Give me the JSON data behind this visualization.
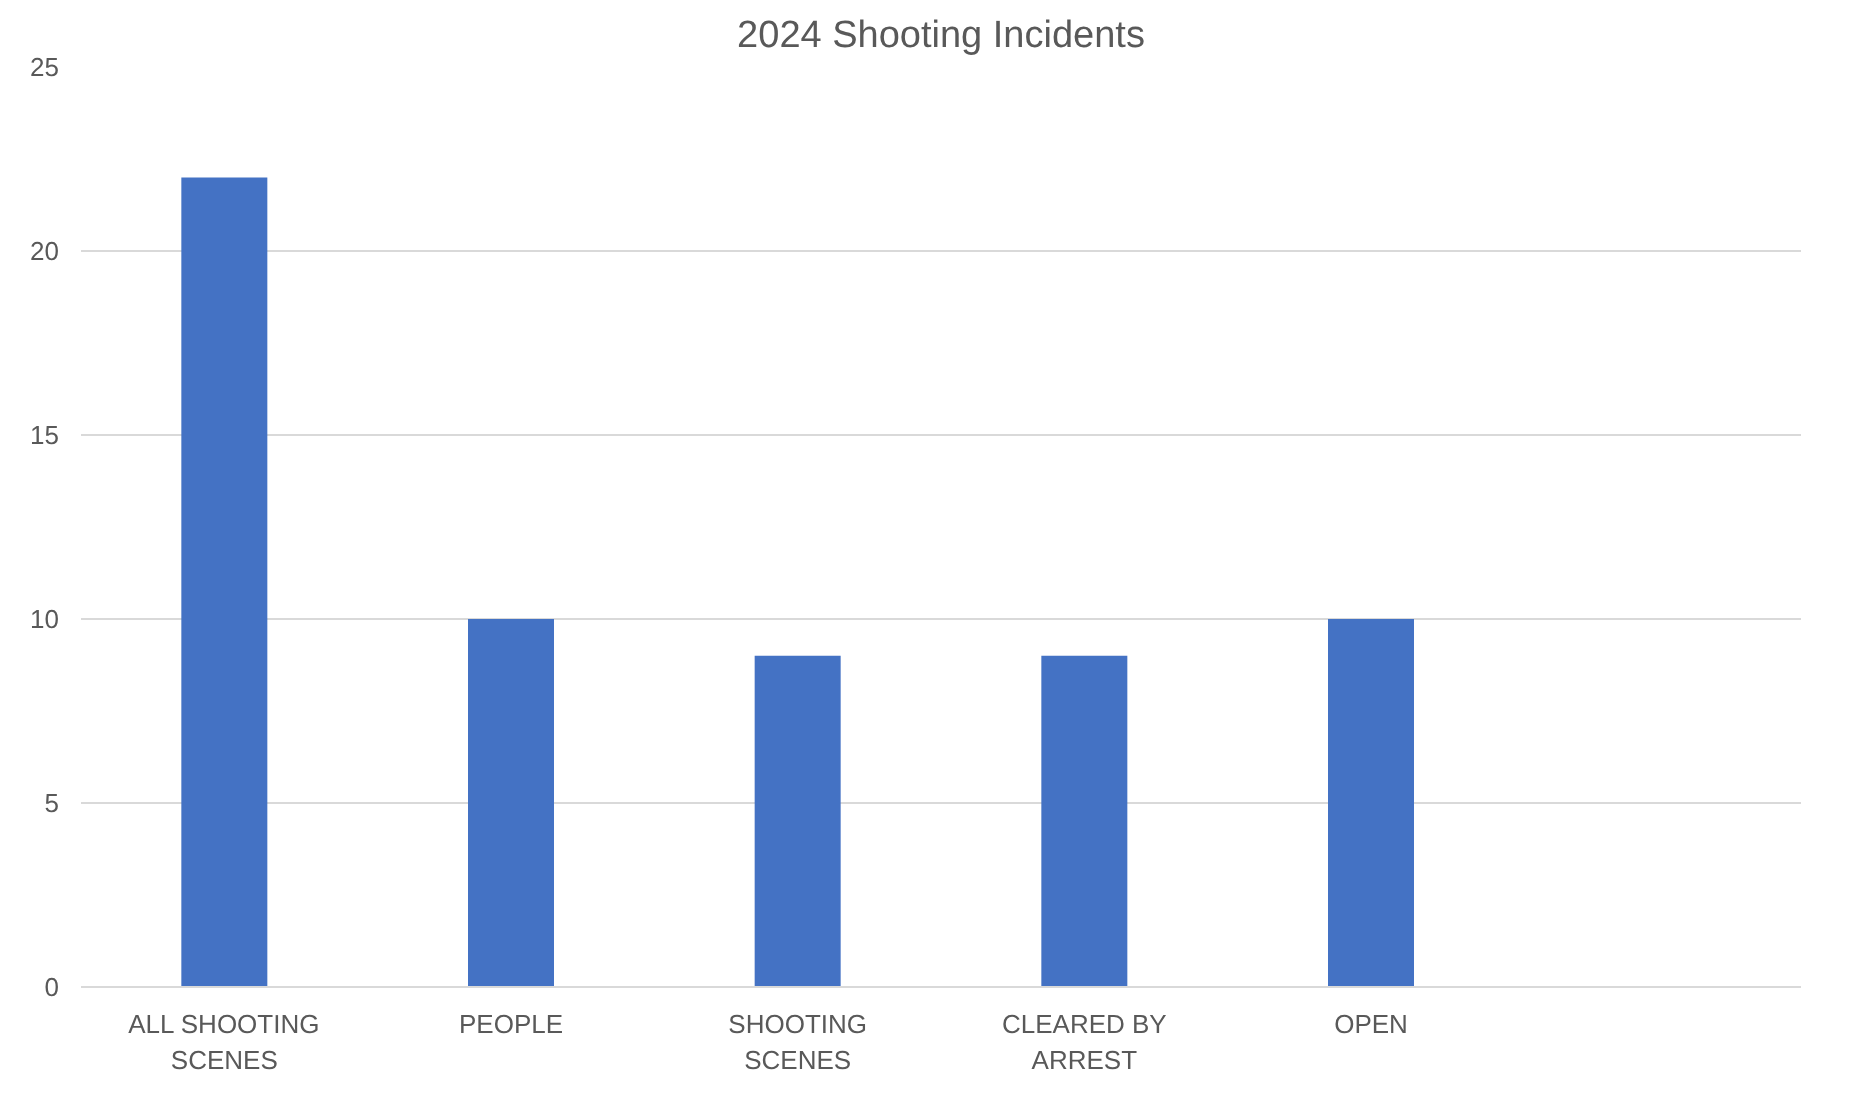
{
  "chart_data": {
    "type": "bar",
    "title": "2024 Shooting Incidents",
    "categories": [
      "ALL SHOOTING SCENES",
      "PEOPLE",
      "SHOOTING SCENES",
      "CLEARED BY ARREST",
      "OPEN",
      null
    ],
    "values": [
      22,
      10,
      9,
      9,
      10,
      null
    ],
    "color": "#4472c4",
    "ylim": [
      0,
      25
    ],
    "yticks": [
      0,
      5,
      10,
      15,
      20,
      25
    ],
    "grid": "y"
  }
}
